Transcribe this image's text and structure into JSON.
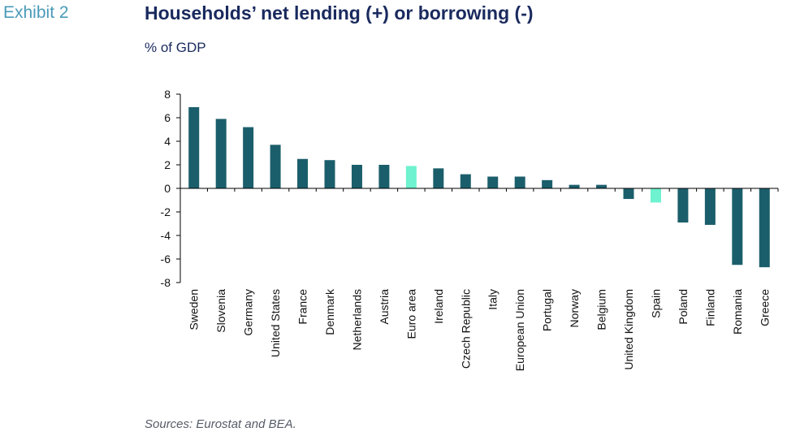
{
  "header": {
    "exhibit": "Exhibit 2",
    "title": "Households’ net lending (+) or borrowing (-)",
    "unit": "% of GDP"
  },
  "footer": {
    "source": "Sources: Eurostat and BEA."
  },
  "colors": {
    "bar": "#1b5e6b",
    "highlight": "#6ef2cf"
  },
  "chart_data": {
    "type": "bar",
    "title": "Households’ net lending (+) or borrowing (-)",
    "ylabel": "% of GDP",
    "ylim": [
      -8,
      8
    ],
    "yticks": [
      8,
      6,
      4,
      2,
      0,
      -2,
      -4,
      -6,
      -8
    ],
    "grid": false,
    "categories": [
      "Sweden",
      "Slovenia",
      "Germany",
      "United States",
      "France",
      "Denmark",
      "Netherlands",
      "Austria",
      "Euro area",
      "Ireland",
      "Czech Republic",
      "Italy",
      "European Union",
      "Portugal",
      "Norway",
      "Belgium",
      "United Kingdom",
      "Spain",
      "Poland",
      "Finland",
      "Romania",
      "Greece"
    ],
    "values": [
      6.9,
      5.9,
      5.2,
      3.7,
      2.5,
      2.4,
      2.0,
      2.0,
      1.9,
      1.7,
      1.2,
      1.0,
      1.0,
      0.7,
      0.3,
      0.3,
      -0.9,
      -1.2,
      -2.9,
      -3.1,
      -6.5,
      -6.7
    ],
    "highlighted": [
      "Euro area",
      "Spain"
    ]
  }
}
